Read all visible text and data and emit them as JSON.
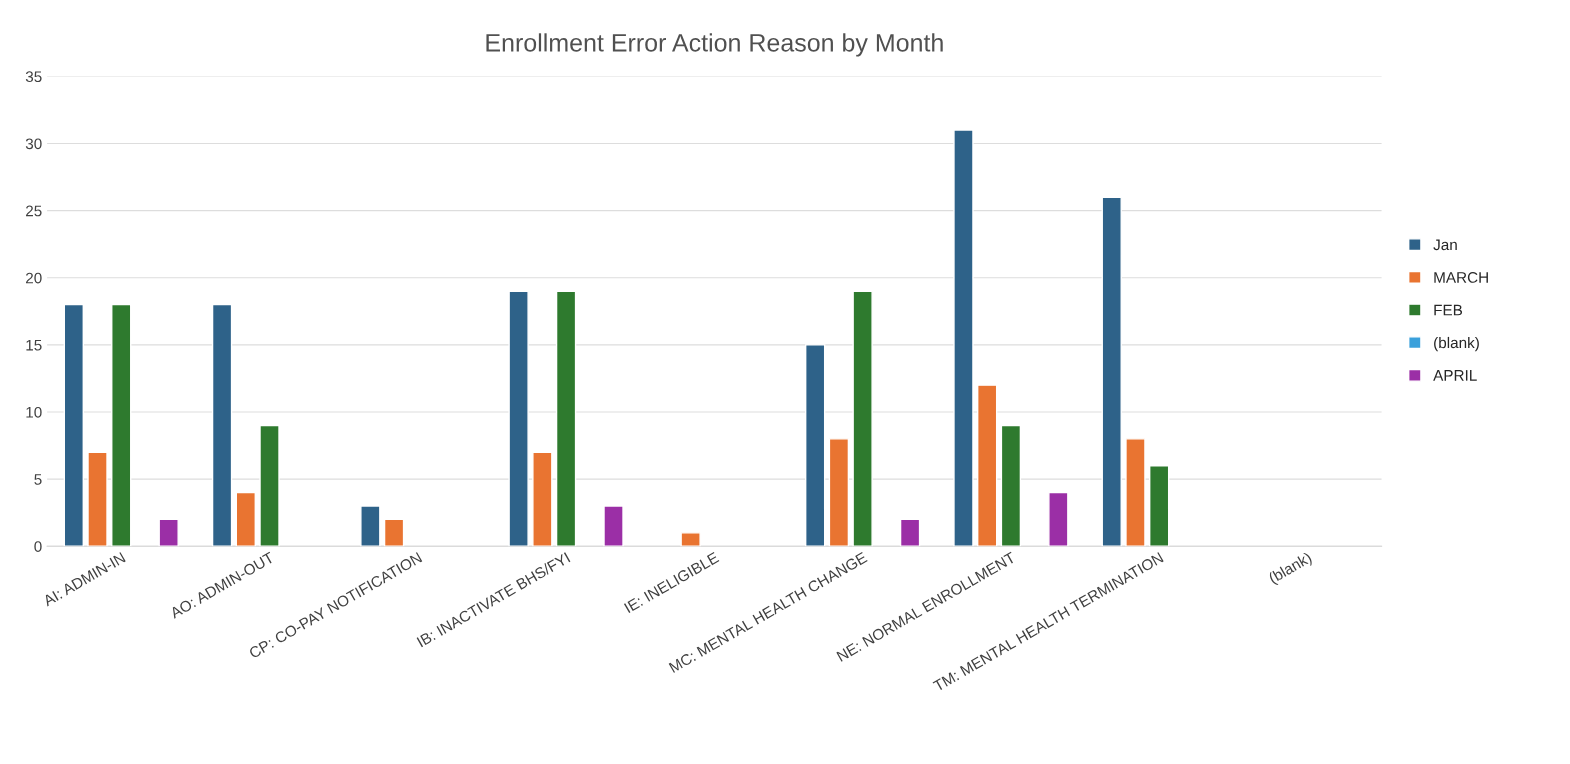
{
  "chart_data": {
    "type": "bar",
    "title": "Enrollment Error Action Reason by Month",
    "categories": [
      "AI: ADMIN-IN",
      "AO: ADMIN-OUT",
      "CP: CO-PAY NOTIFICATION",
      "IB: INACTIVATE BHS/FYI",
      "IE: INELIGIBLE",
      "MC: MENTAL HEALTH CHANGE",
      "NE: NORMAL ENROLLMENT",
      "TM: MENTAL HEALTH TERMINATION",
      "(blank)"
    ],
    "series": [
      {
        "name": "Jan",
        "color": "#2e6289",
        "values": [
          18,
          18,
          3,
          19,
          null,
          15,
          31,
          26,
          null
        ]
      },
      {
        "name": "MARCH",
        "color": "#e97431",
        "values": [
          7,
          4,
          2,
          7,
          1,
          8,
          12,
          8,
          null
        ]
      },
      {
        "name": "FEB",
        "color": "#2e7a2e",
        "values": [
          18,
          9,
          null,
          19,
          null,
          19,
          9,
          6,
          null
        ]
      },
      {
        "name": "(blank)",
        "color": "#3aa0db",
        "values": [
          null,
          null,
          null,
          null,
          null,
          null,
          null,
          null,
          null
        ]
      },
      {
        "name": "APRIL",
        "color": "#9b2fa6",
        "values": [
          2,
          null,
          null,
          3,
          null,
          2,
          4,
          null,
          null
        ]
      }
    ],
    "ylim": [
      0,
      35
    ],
    "yticks": [
      0,
      5,
      10,
      15,
      20,
      25,
      30,
      35
    ],
    "grid": "y",
    "legend": "right"
  }
}
